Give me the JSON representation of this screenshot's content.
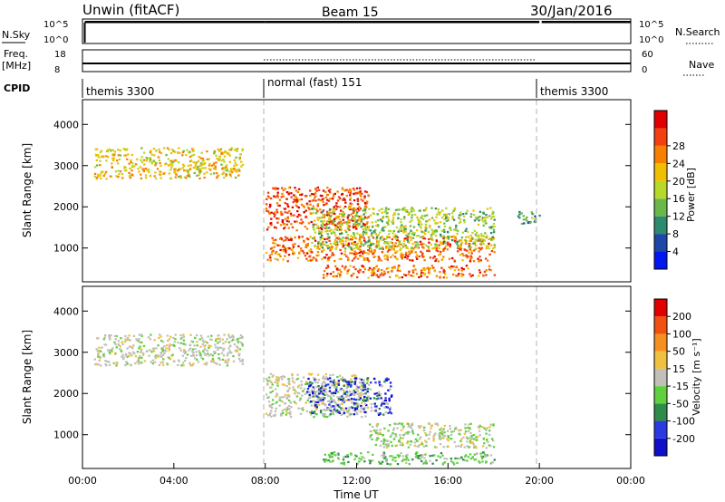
{
  "header": {
    "radar": "Unwin (fitACF)",
    "beam": "Beam 15",
    "date": "30/Jan/2016"
  },
  "strips": {
    "nsky": {
      "label": "N.Sky",
      "top_tick": "10^5",
      "bottom_tick": "10^0",
      "right_label": "N.Search",
      "right_top_tick": "10^5",
      "right_bottom_tick": "10^0"
    },
    "freq": {
      "label_line1": "Freq.",
      "label_line2": "[MHz]",
      "top_tick": "18",
      "bottom_tick": "8",
      "right_label": "Nave",
      "right_top_tick": "60",
      "right_bottom_tick": "0"
    },
    "cpid": {
      "label": "CPID",
      "modes": [
        "themis 3300",
        "normal (fast) 151",
        "themis 3300"
      ]
    }
  },
  "chart_data": [
    {
      "type": "heatmap",
      "name": "power",
      "ylabel": "Slant Range [km]",
      "yticks": [
        "1000",
        "2000",
        "3000",
        "4000"
      ],
      "ylim": [
        180,
        4600
      ],
      "colorbar": {
        "label": "Power [dB]",
        "ticks": [
          "4",
          "8",
          "12",
          "16",
          "20",
          "24",
          "28"
        ],
        "colors": [
          "#0018f0",
          "#1e46a6",
          "#2d8a6e",
          "#6ab84a",
          "#b7d92a",
          "#f0c000",
          "#f78000",
          "#f24010",
          "#e00000"
        ]
      },
      "features": [
        {
          "t": [
            0.5,
            7.0
          ],
          "r": [
            2700,
            3450
          ],
          "level": 0.6
        },
        {
          "t": [
            8.0,
            12.5
          ],
          "r": [
            1450,
            2500
          ],
          "level": 0.85
        },
        {
          "t": [
            8.0,
            18.0
          ],
          "r": [
            700,
            1300
          ],
          "level": 0.8
        },
        {
          "t": [
            10.0,
            18.0
          ],
          "r": [
            1000,
            2000
          ],
          "level": 0.45
        },
        {
          "t": [
            10.5,
            18.0
          ],
          "r": [
            300,
            600
          ],
          "level": 0.8
        },
        {
          "t": [
            19.0,
            20.0
          ],
          "r": [
            1600,
            1900
          ],
          "level": 0.3
        }
      ]
    },
    {
      "type": "heatmap",
      "name": "velocity",
      "xlabel": "Time UT",
      "ylabel": "Slant Range [km]",
      "yticks": [
        "1000",
        "2000",
        "3000",
        "4000"
      ],
      "ylim": [
        180,
        4600
      ],
      "xticks": [
        "00:00",
        "04:00",
        "08:00",
        "12:00",
        "16:00",
        "20:00",
        "00:00"
      ],
      "colorbar": {
        "label": "Velocity [m s⁻¹]",
        "ticks": [
          "200",
          "100",
          "50",
          "15",
          "-15",
          "-50",
          "-100",
          "-200"
        ],
        "colors": [
          "#1010c8",
          "#2a3ae0",
          "#2e8b4a",
          "#5fd040",
          "#c0c0b8",
          "#f0c040",
          "#f59020",
          "#f05010",
          "#e00000"
        ]
      },
      "features": [
        {
          "t": [
            0.5,
            7.0
          ],
          "r": [
            2700,
            3450
          ],
          "level": "ground"
        },
        {
          "t": [
            8.0,
            12.5
          ],
          "r": [
            1450,
            2500
          ],
          "level": "ground"
        },
        {
          "t": [
            9.8,
            13.5
          ],
          "r": [
            1500,
            2400
          ],
          "level": "toward"
        },
        {
          "t": [
            12.5,
            18.0
          ],
          "r": [
            700,
            1300
          ],
          "level": "away"
        },
        {
          "t": [
            10.5,
            18.0
          ],
          "r": [
            300,
            600
          ],
          "level": "toward-slow"
        }
      ]
    }
  ]
}
